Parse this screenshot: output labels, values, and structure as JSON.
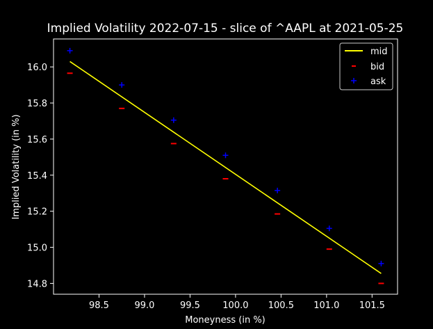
{
  "chart_data": {
    "type": "scatter",
    "title": "Implied Volatility 2022-07-15 - slice of ^AAPL at 2021-05-25",
    "xlabel": "Moneyness (in %)",
    "ylabel": "Implied Volatility (in %)",
    "xlim": [
      98.0,
      101.78
    ],
    "ylim": [
      14.74,
      16.155
    ],
    "xticks": [
      "98.5",
      "99.0",
      "99.5",
      "100.0",
      "100.5",
      "101.0",
      "101.5"
    ],
    "yticks": [
      "14.8",
      "15.0",
      "15.2",
      "15.4",
      "15.6",
      "15.8",
      "16.0"
    ],
    "grid": false,
    "legend_position": "top-right",
    "background": "#000000",
    "series": [
      {
        "name": "mid",
        "kind": "line",
        "color": "#ffff00",
        "x": [
          98.18,
          101.6
        ],
        "values": [
          16.03,
          14.855
        ]
      },
      {
        "name": "bid",
        "kind": "marker-dash",
        "color": "#ff0000",
        "x": [
          98.18,
          98.75,
          99.32,
          99.89,
          100.46,
          101.03,
          101.6
        ],
        "values": [
          15.965,
          15.77,
          15.575,
          15.38,
          15.185,
          14.99,
          14.8
        ]
      },
      {
        "name": "ask",
        "kind": "marker-plus",
        "color": "#0000ff",
        "x": [
          98.18,
          98.75,
          99.32,
          99.89,
          100.46,
          101.03,
          101.6
        ],
        "values": [
          16.09,
          15.9,
          15.705,
          15.51,
          15.315,
          15.105,
          14.91
        ]
      }
    ]
  }
}
